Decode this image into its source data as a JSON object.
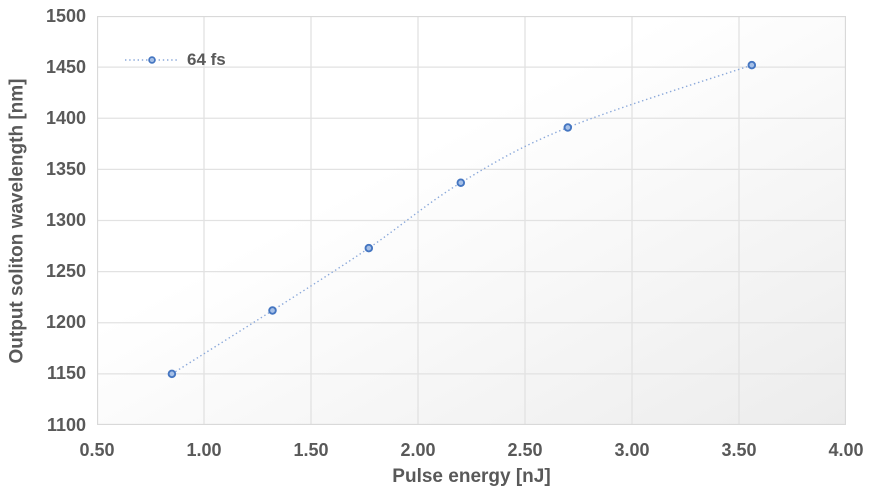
{
  "chart": {
    "x_axis_title": "Pulse energy [nJ]",
    "y_axis_title": "Output soliton wavelength [nm]",
    "legend": {
      "label": "64 fs"
    }
  },
  "chart_data": {
    "type": "line",
    "title": "",
    "xlabel": "Pulse energy [nJ]",
    "ylabel": "Output soliton wavelength [nm]",
    "xlim": [
      0.5,
      4.0
    ],
    "ylim": [
      1100,
      1500
    ],
    "x_ticks": [
      "0.50",
      "1.00",
      "1.50",
      "2.00",
      "2.50",
      "3.00",
      "3.50",
      "4.00"
    ],
    "y_ticks": [
      "1100",
      "1150",
      "1200",
      "1250",
      "1300",
      "1350",
      "1400",
      "1450",
      "1500"
    ],
    "grid": true,
    "legend_position": "inside-top-left",
    "series": [
      {
        "name": "64 fs",
        "x": [
          0.85,
          1.32,
          1.77,
          2.2,
          2.7,
          3.56
        ],
        "y": [
          1150,
          1212,
          1273,
          1337,
          1391,
          1452
        ],
        "line_style": "dotted-smoothed",
        "marker": "circle"
      }
    ]
  },
  "style": {
    "line_color": "#8aa8da",
    "marker_fill": "#a6c0e7",
    "marker_stroke": "#4576c1",
    "grid_color": "#e2e2e2",
    "plot_border_color": "#d9d9d9",
    "axis_text_color": "#595959",
    "plot_bg_gradient_start": "#ffffff",
    "plot_bg_gradient_end": "#ececec"
  }
}
